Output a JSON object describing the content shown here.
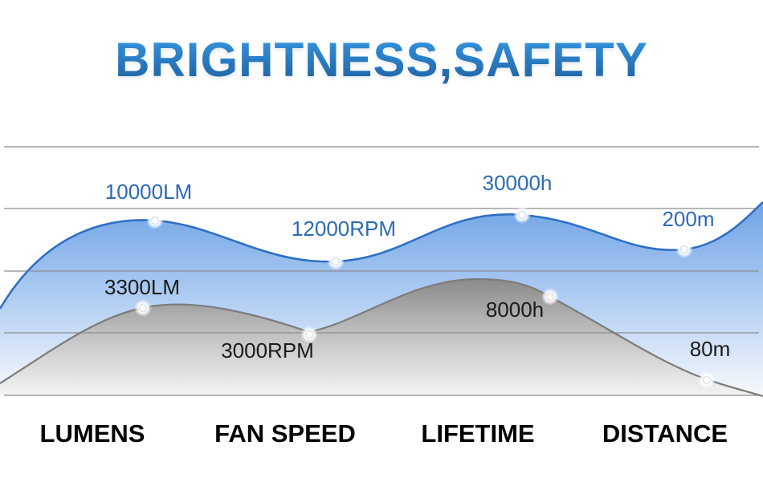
{
  "title": "BRIGHTNESS,SAFETY",
  "colors": {
    "title": "#2a80c8",
    "brightness_line": "#2f6fc3",
    "brightness_label": "#2a6ab8",
    "safety_line": "#808080",
    "safety_label": "#1a1a1a",
    "grid": "#8c8c8c",
    "category": "#000000"
  },
  "chart_data": {
    "type": "area",
    "categories": [
      "LUMENS",
      "FAN SPEED",
      "LIFETIME",
      "DISTANCE"
    ],
    "series": [
      {
        "style": "brightness",
        "labels": [
          "10000LM",
          "12000RPM",
          "30000h",
          "200m"
        ]
      },
      {
        "style": "safety",
        "labels": [
          "3300LM",
          "3000RPM",
          "8000h",
          "80m"
        ]
      }
    ],
    "grid": true,
    "grid_lines": 5
  }
}
